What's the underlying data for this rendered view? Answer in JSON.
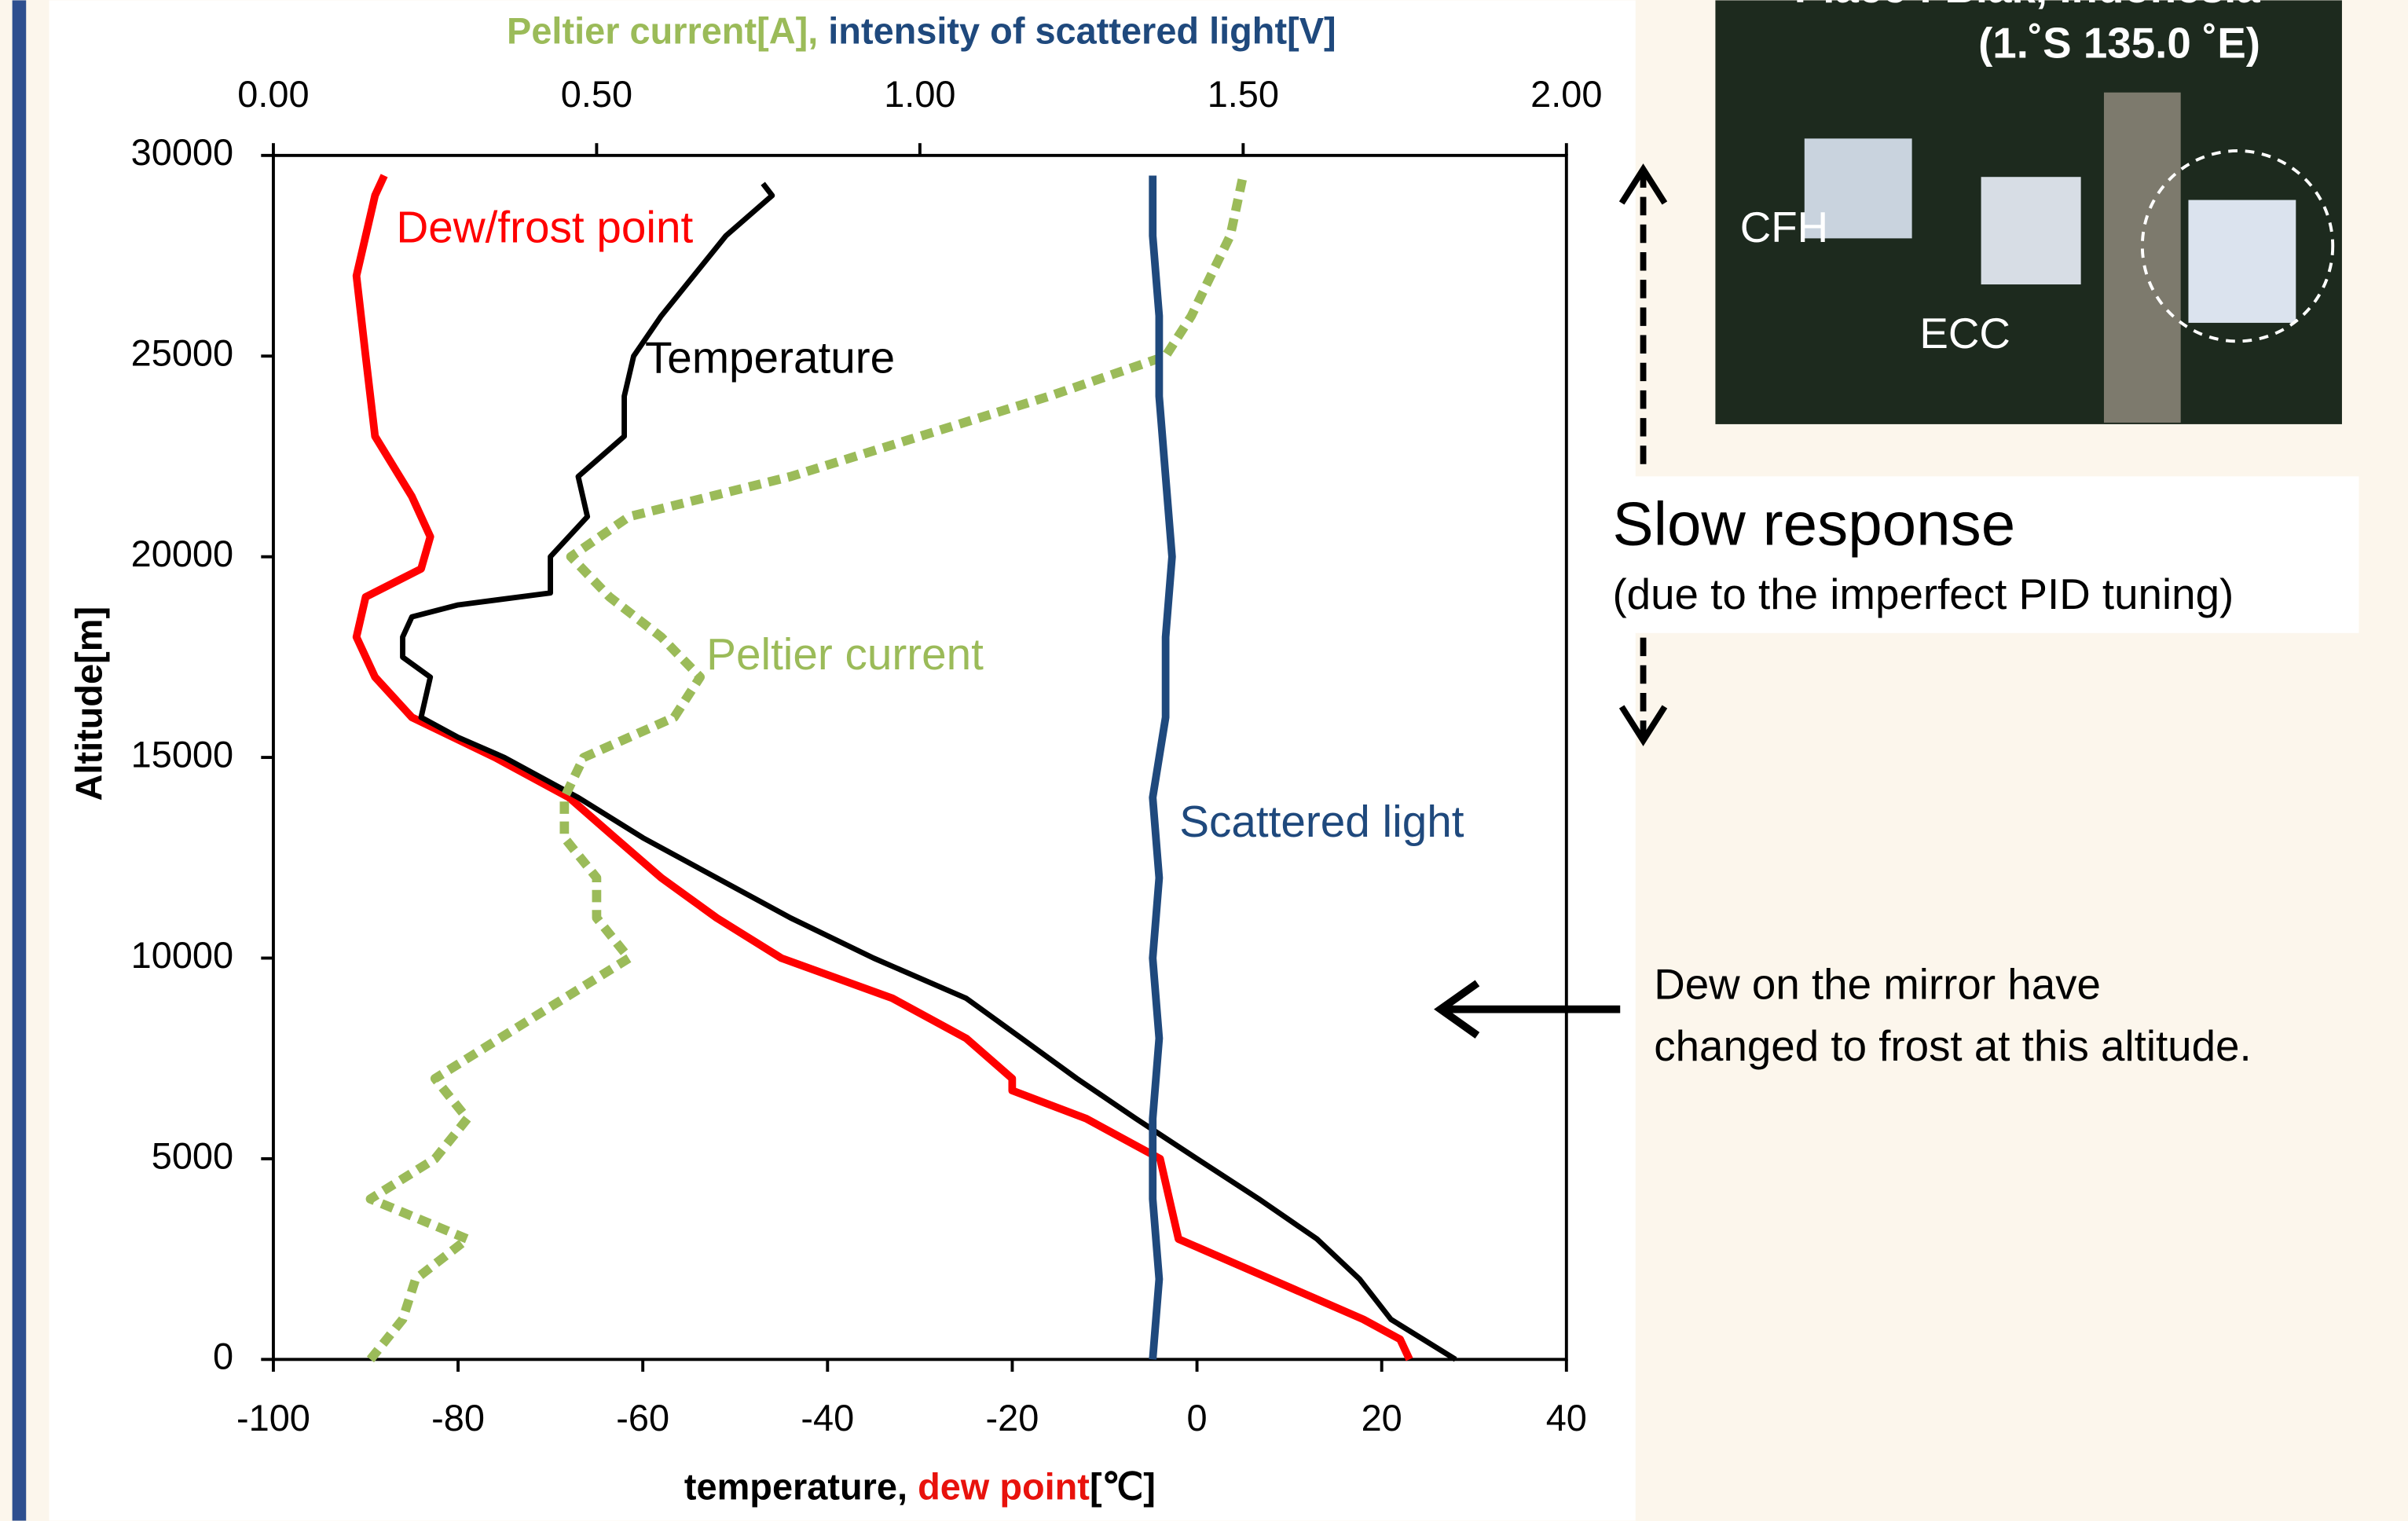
{
  "photo": {
    "place": "Place : Biak, Indonesia",
    "coords": "(1.˚S   135.0 ˚E)",
    "labels": [
      "CFH",
      "ECC"
    ]
  },
  "annotations": {
    "slow_title": "Slow response",
    "slow_note": "(due to the imperfect PID tuning)",
    "dew_note": [
      "Dew on the mirror have",
      "changed to frost at this altitude."
    ]
  },
  "chart_data": {
    "type": "line",
    "xlabel": [
      {
        "text": "temperature, ",
        "color": "#000000"
      },
      {
        "text": "dew point",
        "color": "#e8120c"
      },
      {
        "text": "[℃]",
        "color": "#000000"
      }
    ],
    "x2label": [
      {
        "text": "Peltier current[A], ",
        "color": "#9bbb59"
      },
      {
        "text": "intensity of scattered light[V]",
        "color": "#1f497d"
      }
    ],
    "ylabel": "Altitude[m]",
    "xlim": [
      -100,
      40
    ],
    "xticks": [
      -100,
      -80,
      -60,
      -40,
      -20,
      0,
      20,
      40
    ],
    "x2lim": [
      0,
      2
    ],
    "x2ticks": [
      {
        "value": 0,
        "label": "0.00"
      },
      {
        "value": 0.5,
        "label": "0.50"
      },
      {
        "value": 1,
        "label": "1.00"
      },
      {
        "value": 1.5,
        "label": "1.50"
      },
      {
        "value": 2,
        "label": "2.00"
      }
    ],
    "ylim": [
      0,
      30000
    ],
    "yticks": [
      0,
      5000,
      10000,
      15000,
      20000,
      25000,
      30000
    ],
    "series": [
      {
        "name": "Dew/frost point",
        "color": "#ff0000",
        "axis": "x",
        "values": [
          23,
          22,
          18,
          8,
          -2,
          -3,
          -4,
          -12,
          -20,
          -20,
          -25,
          -33,
          -45,
          -52,
          -58,
          -63,
          -68,
          -76,
          -85,
          -89,
          -91,
          -90,
          -84,
          -83,
          -85,
          -89,
          -90,
          -91,
          -89,
          -88
        ],
        "altitudes": [
          0,
          500,
          1000,
          2000,
          3000,
          4000,
          5000,
          6000,
          6700,
          7000,
          8000,
          9000,
          10000,
          11000,
          12000,
          13000,
          14000,
          15000,
          16000,
          17000,
          18000,
          19000,
          19700,
          20500,
          21500,
          23000,
          25000,
          27000,
          29000,
          29500
        ]
      },
      {
        "name": "Temperature",
        "color": "#000000",
        "axis": "x",
        "values": [
          28,
          21,
          17.6,
          13,
          6.7,
          0,
          -6.6,
          -13,
          -19,
          -25,
          -35,
          -44,
          -52,
          -60,
          -67,
          -75,
          -80,
          -84,
          -83,
          -86,
          -86,
          -85,
          -80,
          -70,
          -70,
          -66,
          -67,
          -62,
          -62,
          -61,
          -58,
          -51,
          -46,
          -47
        ],
        "altitudes": [
          0,
          1000,
          2000,
          3000,
          4000,
          5000,
          6000,
          7000,
          8000,
          9000,
          10000,
          11000,
          12000,
          13000,
          14000,
          15000,
          15500,
          16000,
          17000,
          17500,
          18000,
          18500,
          18800,
          19100,
          20000,
          21000,
          22000,
          23000,
          24000,
          25000,
          26000,
          28000,
          29000,
          29300
        ]
      },
      {
        "name": "Peltier current",
        "color": "#9bbb59",
        "axis": "x2",
        "values": [
          0.15,
          0.2,
          0.22,
          0.3,
          0.15,
          0.25,
          0.3,
          0.25,
          0.35,
          0.45,
          0.55,
          0.5,
          0.5,
          0.45,
          0.45,
          0.48,
          0.62,
          0.66,
          0.6,
          0.52,
          0.46,
          0.55,
          0.8,
          1.0,
          1.2,
          1.38,
          1.42,
          1.45,
          1.48,
          1.5
        ],
        "altitudes": [
          0,
          1000,
          2000,
          3000,
          4000,
          5000,
          6000,
          7000,
          8000,
          9000,
          10000,
          11000,
          12000,
          13000,
          14000,
          15000,
          16000,
          17000,
          18000,
          19000,
          20000,
          21000,
          22000,
          23000,
          24000,
          25000,
          26000,
          27000,
          28000,
          29500
        ]
      },
      {
        "name": "Scattered light",
        "color": "#1f497d",
        "axis": "x2",
        "values": [
          1.36,
          1.37,
          1.36,
          1.36,
          1.37,
          1.36,
          1.37,
          1.36,
          1.38,
          1.38,
          1.39,
          1.38,
          1.37,
          1.37,
          1.36,
          1.36
        ],
        "altitudes": [
          0,
          2000,
          4000,
          6000,
          8000,
          10000,
          12000,
          14000,
          16000,
          18000,
          20000,
          22000,
          24000,
          26000,
          28000,
          29500
        ]
      }
    ]
  }
}
